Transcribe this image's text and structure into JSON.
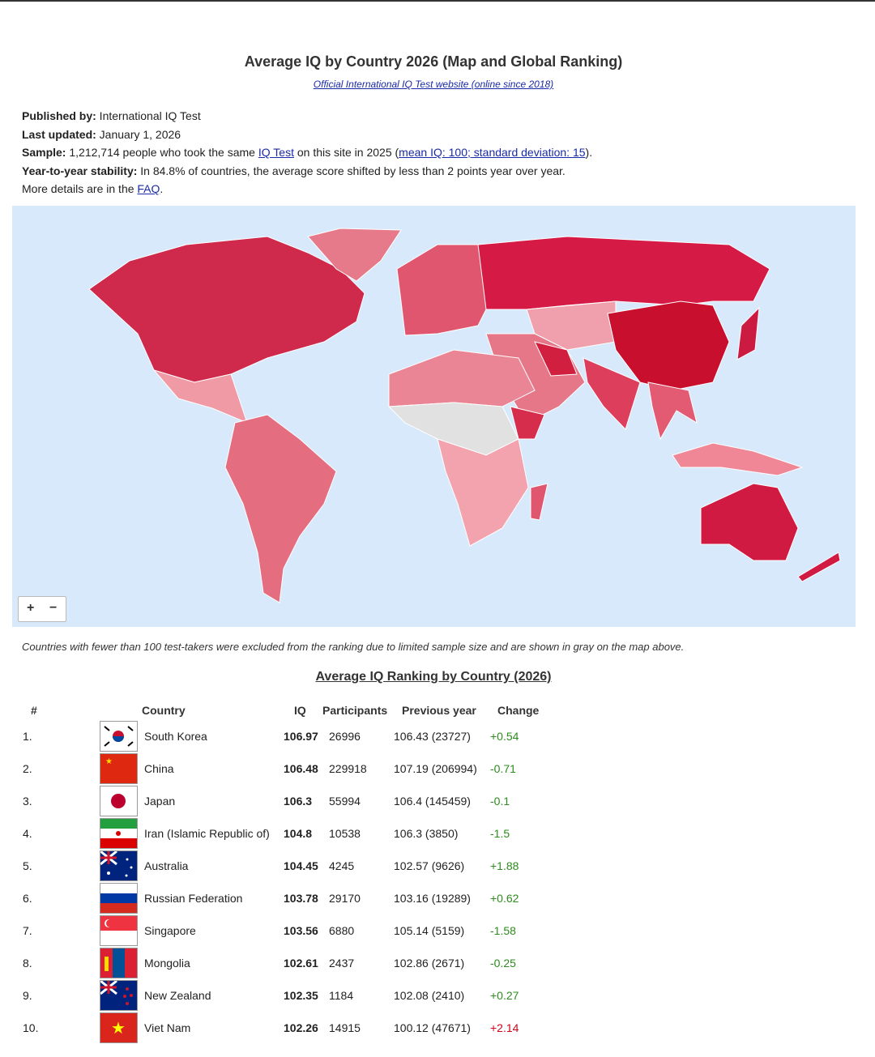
{
  "header": {
    "title": "Average IQ by Country 2026 (Map and Global Ranking)",
    "link": "Official International IQ Test website (online since 2018)"
  },
  "meta": {
    "published": {
      "label": "Published by:",
      "text": " International IQ Test"
    },
    "last_updated": {
      "label": "Last updated:",
      "text": " January 1, 2026"
    },
    "sample": {
      "label": "Sample:",
      "text1": " 1,212,714 people who took the same ",
      "link1": "IQ Test",
      "text2": " on this site in 2025 (",
      "link2": "mean IQ: 100; standard deviation: 15",
      "text3": ")."
    },
    "stability": {
      "label": "Year-to-year stability:",
      "text": " In 84.8% of countries, the average score shifted by less than 2 points year over year."
    },
    "details": {
      "text": "More details are in the ",
      "link": "FAQ",
      "end": "."
    }
  },
  "map": {
    "zoom_in": "+",
    "zoom_out": "−"
  },
  "note": "Countries with fewer than 100 test-takers were excluded from the ranking due to limited sample size and are shown in gray on the map above.",
  "table": {
    "title": "Average IQ Ranking by Country (2026)",
    "headers": [
      "#",
      "Country",
      "IQ",
      "Participants",
      "Previous year",
      "Change"
    ],
    "rows": [
      [
        "1.",
        "South Korea",
        "106.97",
        "26996",
        "106.43 (23727)",
        "+0.54"
      ],
      [
        "2.",
        "China",
        "106.48",
        "229918",
        "107.19 (206994)",
        "-0.71"
      ],
      [
        "3.",
        "Japan",
        "106.3",
        "55994",
        "106.4 (145459)",
        "-0.1"
      ],
      [
        "4.",
        "Iran (Islamic Republic of)",
        "104.8",
        "10538",
        "106.3 (3850)",
        "-1.5"
      ],
      [
        "5.",
        "Australia",
        "104.45",
        "4245",
        "102.57 (9626)",
        "+1.88"
      ],
      [
        "6.",
        "Russian Federation",
        "103.78",
        "29170",
        "103.16 (19289)",
        "+0.62"
      ],
      [
        "7.",
        "Singapore",
        "103.56",
        "6880",
        "105.14 (5159)",
        "-1.58"
      ],
      [
        "8.",
        "Mongolia",
        "102.61",
        "2437",
        "102.86 (2671)",
        "-0.25"
      ],
      [
        "9.",
        "New Zealand",
        "102.35",
        "1184",
        "102.08 (2410)",
        "+0.27"
      ],
      [
        "10.",
        "Viet Nam",
        "102.26",
        "14915",
        "100.12 (47671)",
        "+2.14"
      ]
    ]
  }
}
